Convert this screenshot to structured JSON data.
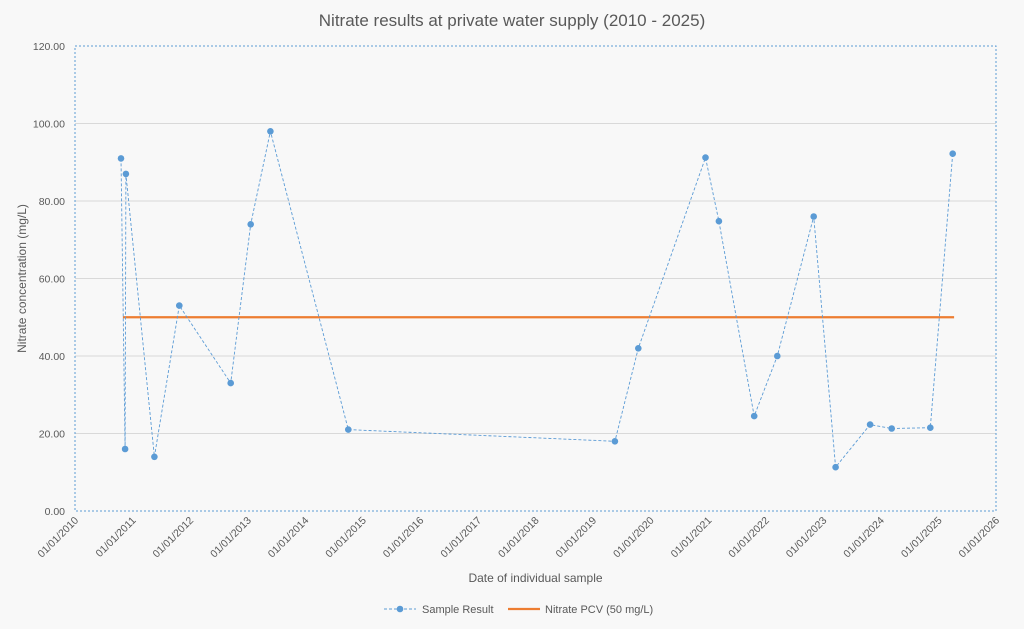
{
  "chart_data": {
    "type": "line",
    "title": "Nitrate results at private water supply (2010 - 2025)",
    "xlabel": "Date of individual sample",
    "ylabel": "Nitrate concentration (mg/L)",
    "xlim": [
      "01/01/2010",
      "01/01/2026"
    ],
    "ylim": [
      0,
      120
    ],
    "grid": true,
    "legend_position": "bottom",
    "x_tick_labels": [
      "01/01/2010",
      "01/01/2011",
      "01/01/2012",
      "01/01/2013",
      "01/01/2014",
      "01/01/2015",
      "01/01/2016",
      "01/01/2017",
      "01/01/2018",
      "01/01/2019",
      "01/01/2020",
      "01/01/2021",
      "01/01/2022",
      "01/01/2023",
      "01/01/2024",
      "01/01/2025",
      "01/01/2026"
    ],
    "y_tick_labels": [
      "0.00",
      "20.00",
      "40.00",
      "60.00",
      "80.00",
      "100.00",
      "120.00"
    ],
    "series": [
      {
        "name": "Sample Result",
        "color": "#5b9bd5",
        "style": "dashed-with-markers",
        "x": [
          "2010-10-20",
          "2010-11-15",
          "2010-11-20",
          "2011-05-20",
          "2011-10-25",
          "2012-09-15",
          "2013-01-20",
          "2013-05-25",
          "2014-10-01",
          "2019-05-20",
          "2019-10-15",
          "2020-12-15",
          "2021-03-10",
          "2021-10-20",
          "2022-03-15",
          "2022-11-01",
          "2023-03-20",
          "2023-10-25",
          "2024-03-10",
          "2024-11-10",
          "2025-04-01"
        ],
        "y": [
          91,
          16,
          87,
          14,
          53,
          33,
          74,
          98,
          21,
          18,
          42,
          91.2,
          74.8,
          24.5,
          40,
          76,
          11.3,
          22.3,
          21.3,
          21.5,
          92.2
        ]
      },
      {
        "name": "Nitrate PCV (50 mg/L)",
        "color": "#ed7d31",
        "style": "solid",
        "x": [
          "2010-11-01",
          "2025-04-10"
        ],
        "y": [
          50,
          50
        ]
      }
    ]
  }
}
